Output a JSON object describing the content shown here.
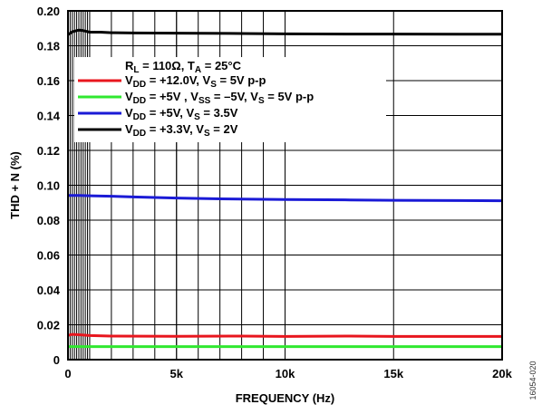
{
  "chart_data": {
    "type": "line",
    "title": "",
    "xlabel": "FREQUENCY (Hz)",
    "ylabel": "THD + N (%)",
    "xlim": [
      0,
      20000
    ],
    "ylim": [
      0,
      0.2
    ],
    "x_ticks": [
      {
        "value": 0,
        "label": "0"
      },
      {
        "value": 5000,
        "label": "5k"
      },
      {
        "value": 10000,
        "label": "10k"
      },
      {
        "value": 15000,
        "label": "15k"
      },
      {
        "value": 20000,
        "label": "20k"
      }
    ],
    "y_ticks": [
      {
        "value": 0,
        "label": "0"
      },
      {
        "value": 0.02,
        "label": "0.02"
      },
      {
        "value": 0.04,
        "label": "0.04"
      },
      {
        "value": 0.06,
        "label": "0.06"
      },
      {
        "value": 0.08,
        "label": "0.08"
      },
      {
        "value": 0.1,
        "label": "0.10"
      },
      {
        "value": 0.12,
        "label": "0.12"
      },
      {
        "value": 0.14,
        "label": "0.14"
      },
      {
        "value": 0.16,
        "label": "0.16"
      },
      {
        "value": 0.18,
        "label": "0.18"
      },
      {
        "value": 0.2,
        "label": "0.20"
      }
    ],
    "grid": true,
    "legend_position": "upper-left-inside",
    "legend_header": {
      "parts": [
        {
          "t": "R",
          "s": "n"
        },
        {
          "t": "L",
          "s": "sub"
        },
        {
          "t": " = 110Ω, T",
          "s": "n"
        },
        {
          "t": "A",
          "s": "sub"
        },
        {
          "t": " = 25°C",
          "s": "n"
        }
      ]
    },
    "series": [
      {
        "name": "VDD = +12.0V, VS = 5V p-p",
        "color": "#e8161e",
        "label_parts": [
          {
            "t": "V",
            "s": "n"
          },
          {
            "t": "DD",
            "s": "sub"
          },
          {
            "t": " = +12.0V, V",
            "s": "n"
          },
          {
            "t": "S",
            "s": "sub"
          },
          {
            "t": " = 5V p-p",
            "s": "n"
          }
        ],
        "x": [
          20,
          200,
          500,
          1000,
          2000,
          5000,
          8000,
          10000,
          13000,
          15000,
          18000,
          20000
        ],
        "y": [
          0.014,
          0.0145,
          0.0143,
          0.0138,
          0.0135,
          0.0134,
          0.0135,
          0.0133,
          0.0135,
          0.0133,
          0.0133,
          0.0133
        ]
      },
      {
        "name": "VDD = +5V, VSS = -5V, VS = 5V p-p",
        "color": "#2fe82f",
        "label_parts": [
          {
            "t": "V",
            "s": "n"
          },
          {
            "t": "DD",
            "s": "sub"
          },
          {
            "t": " = +5V , V",
            "s": "n"
          },
          {
            "t": "SS",
            "s": "sub"
          },
          {
            "t": " = –5V, V",
            "s": "n"
          },
          {
            "t": "S",
            "s": "sub"
          },
          {
            "t": " = 5V p-p",
            "s": "n"
          }
        ],
        "x": [
          20,
          1000,
          2000,
          5000,
          10000,
          15000,
          20000
        ],
        "y": [
          0.0075,
          0.0075,
          0.0075,
          0.0075,
          0.0075,
          0.0075,
          0.0075
        ]
      },
      {
        "name": "VDD = +5V, VS = 3.5V",
        "color": "#1a1ad6",
        "label_parts": [
          {
            "t": "V",
            "s": "n"
          },
          {
            "t": "DD",
            "s": "sub"
          },
          {
            "t": " = +5V, V",
            "s": "n"
          },
          {
            "t": "S",
            "s": "sub"
          },
          {
            "t": " = 3.5V",
            "s": "n"
          }
        ],
        "x": [
          20,
          500,
          1000,
          2000,
          3000,
          5000,
          7000,
          10000,
          13000,
          15000,
          18000,
          20000
        ],
        "y": [
          0.0942,
          0.0942,
          0.094,
          0.0937,
          0.0933,
          0.0927,
          0.0922,
          0.0918,
          0.0916,
          0.0914,
          0.0912,
          0.0911
        ]
      },
      {
        "name": "VDD = +3.3V, VS = 2V",
        "color": "#000000",
        "label_parts": [
          {
            "t": "V",
            "s": "n"
          },
          {
            "t": "DD",
            "s": "sub"
          },
          {
            "t": " = +3.3V, V",
            "s": "n"
          },
          {
            "t": "S",
            "s": "sub"
          },
          {
            "t": " = 2V",
            "s": "n"
          }
        ],
        "x": [
          20,
          200,
          500,
          700,
          1000,
          1500,
          2000,
          3000,
          5000,
          8000,
          10000,
          13000,
          15000,
          18000,
          20000
        ],
        "y": [
          0.1865,
          0.188,
          0.189,
          0.1887,
          0.1878,
          0.1878,
          0.1875,
          0.1873,
          0.1872,
          0.187,
          0.1868,
          0.1867,
          0.1867,
          0.1866,
          0.1866
        ]
      }
    ],
    "figure_id": "16054-020"
  }
}
